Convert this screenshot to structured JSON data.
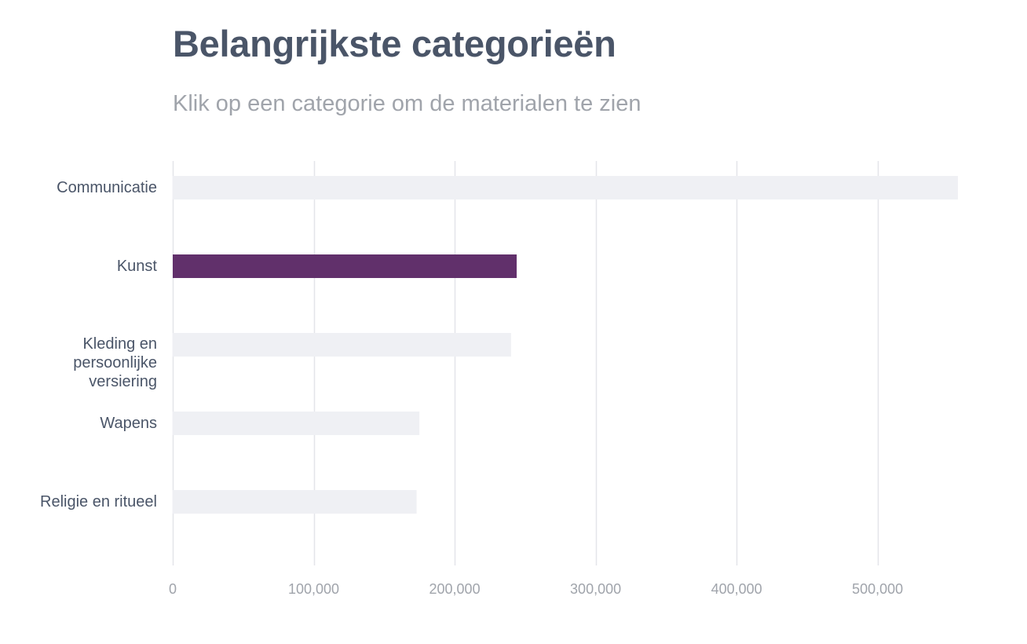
{
  "title": "Belangrijkste categorieën",
  "subtitle": "Klik op een categorie om de materialen te zien",
  "colors": {
    "bar": "#eff0f4",
    "bar_active": "#61306b",
    "grid": "#e4e5e9"
  },
  "chart_data": {
    "type": "bar",
    "orientation": "horizontal",
    "categories": [
      [
        "Communicatie"
      ],
      [
        "Kunst"
      ],
      [
        "Kleding en",
        "persoonlijke",
        "versiering"
      ],
      [
        "Wapens"
      ],
      [
        "Religie en ritueel"
      ]
    ],
    "values": [
      557000,
      244000,
      240000,
      175000,
      173000
    ],
    "selected_index": 1,
    "xlim": [
      0,
      557000
    ],
    "xticks": [
      0,
      100000,
      200000,
      300000,
      400000,
      500000
    ],
    "xtick_labels": [
      "0",
      "100,000",
      "200,000",
      "300,000",
      "400,000",
      "500,000"
    ],
    "grid": true
  }
}
